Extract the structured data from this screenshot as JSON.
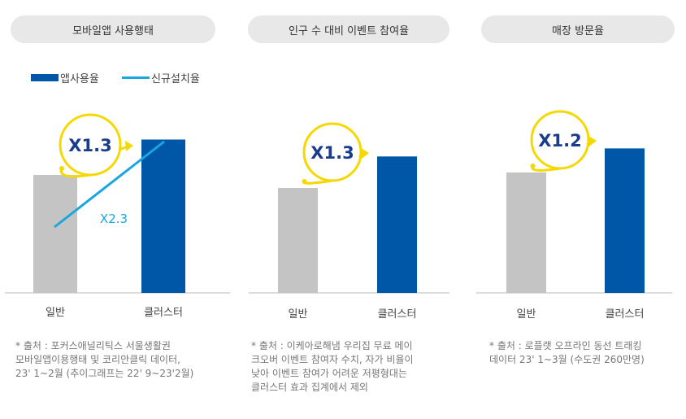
{
  "colors": {
    "cluster_bar": "#0057a8",
    "general_bar": "#c4c4c4",
    "install_line": "#1aa7e0",
    "highlight": "#f5d800",
    "axis": "#bbbbbb",
    "pill_bg": "#e8e8e8"
  },
  "legend": {
    "bar_label": "앱사용율",
    "line_label": "신규설치율"
  },
  "chart_data": [
    {
      "type": "bar",
      "title": "모바일앱 사용행태",
      "categories": [
        "일반",
        "클러스터"
      ],
      "values": [
        1.0,
        1.3
      ],
      "multiplier_label": "X1.3",
      "line_series": {
        "name": "신규설치율",
        "values": [
          1.0,
          2.3
        ],
        "label": "X2.3"
      },
      "source": "* 출처 : 포커스애널리틱스 서울생활권\n모바일앱이용행태 및 코리안클릭 데이터,\n23' 1~2월 (추이그래프는 22' 9~23'2월)"
    },
    {
      "type": "bar",
      "title": "인구 수 대비 이벤트 참여율",
      "categories": [
        "일반",
        "클러스터"
      ],
      "values": [
        1.0,
        1.3
      ],
      "multiplier_label": "X1.3",
      "source": "* 출처 : 이케아로해냄 우리집 무료 메이\n크오버 이벤트 참여자 수치, 자가 비율이\n낮아 이벤트 참여가 어려운 저평형대는\n클러스터 효과 집계에서 제외"
    },
    {
      "type": "bar",
      "title": "매장 방문율",
      "categories": [
        "일반",
        "클러스터"
      ],
      "values": [
        1.0,
        1.2
      ],
      "multiplier_label": "X1.2",
      "source": "* 출처 : 로플랫 오프라인 동선 트래킹\n데이터 23' 1~3월 (수도권 260만명)"
    }
  ]
}
